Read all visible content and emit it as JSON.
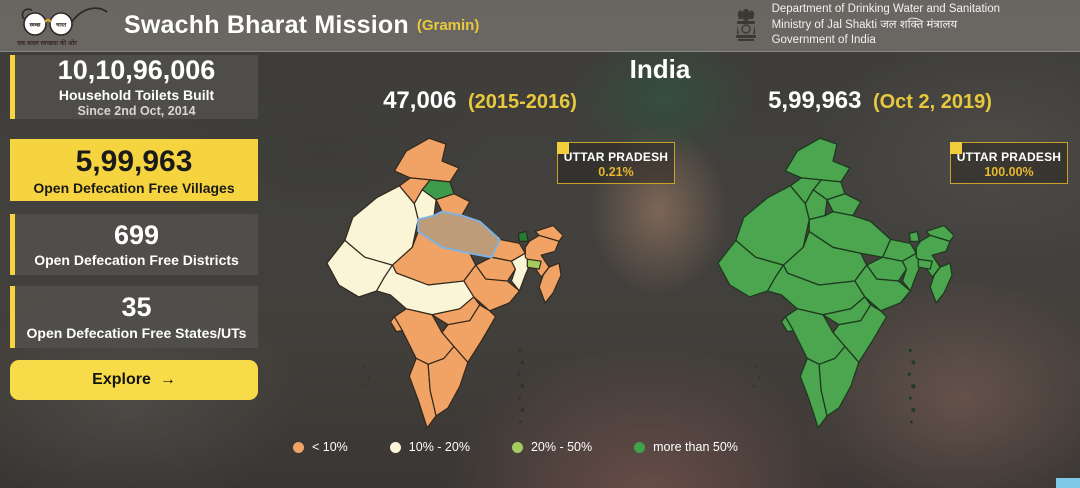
{
  "header": {
    "logo": {
      "lens_left": "स्वच्छ",
      "lens_right": "भारत",
      "tagline": "एक कदम स्वच्छता की ओर"
    },
    "title": "Swachh Bharat Mission",
    "subtitle": "(Gramin)",
    "dept_lines": {
      "line1": "Department of Drinking Water and Sanitation",
      "line2": "Ministry of Jal Shakti जल शक्ति मंत्रालय",
      "line3": "Government of India"
    }
  },
  "sidebar": {
    "cards": [
      {
        "value": "10,10,96,006",
        "label": "Household Toilets Built",
        "sublabel": "Since 2nd Oct, 2014"
      },
      {
        "value": "5,99,963",
        "label": "Open Defecation Free Villages",
        "sublabel": ""
      },
      {
        "value": "699",
        "label": "Open Defecation Free Districts",
        "sublabel": ""
      },
      {
        "value": "35",
        "label": "Open Defecation Free States/UTs",
        "sublabel": ""
      }
    ],
    "explore_label": "Explore",
    "explore_arrow": "→"
  },
  "main": {
    "country_title": "India",
    "maps": [
      {
        "value": "47,006",
        "period": "(2015-2016)",
        "tooltip": {
          "state": "UTTAR PRADESH",
          "value": "0.21%"
        }
      },
      {
        "value": "5,99,963",
        "period": "(Oct 2, 2019)",
        "tooltip": {
          "state": "UTTAR PRADESH",
          "value": "100.00%"
        }
      }
    ],
    "legend": [
      {
        "label": "< 10%",
        "color": "#F0A365"
      },
      {
        "label": "10% - 20%",
        "color": "#FAF5D7"
      },
      {
        "label": "20% - 50%",
        "color": "#A4CB5E"
      },
      {
        "label": "more than 50%",
        "color": "#3FA24B"
      }
    ]
  },
  "choropleth": {
    "category_colors": {
      "lt10": "#F0A365",
      "b10_20": "#FAF5D7",
      "b20_50": "#A4CB5E",
      "gt50": "#3F9B4C",
      "gt50_dark": "#237A34",
      "highlight_fill": "#BE9C79",
      "highlight_stroke": "#7FB2DF",
      "left_stroke": "#32271B",
      "right_fill": "#4BA64F",
      "right_stroke": "#1E3A1E",
      "islands_left": "#33332B",
      "islands_right": "#223A22"
    },
    "left_states": {
      "JK": "lt10",
      "HP": "gt50",
      "PB": "lt10",
      "UK": "lt10",
      "HR": "b10_20",
      "RJ": "b10_20",
      "GJ": "b10_20",
      "MP": "lt10",
      "BH": "lt10",
      "SK": "gt50_dark",
      "WB": "b10_20",
      "JH": "lt10",
      "AR": "lt10",
      "AS": "lt10",
      "ML": "b20_50",
      "NE": "lt10",
      "CG": "b10_20",
      "OD": "lt10",
      "MH": "b10_20",
      "TG": "lt10",
      "AP": "lt10",
      "KA": "lt10",
      "GA": "lt10",
      "KL": "lt10",
      "TN": "lt10",
      "UP": "highlight"
    },
    "right_states_category": "gt50"
  }
}
